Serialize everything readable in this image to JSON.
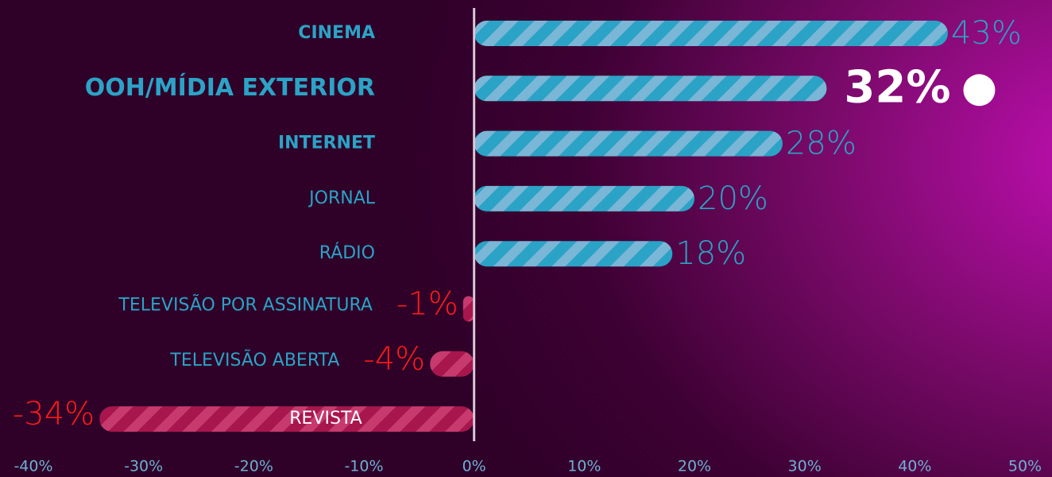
{
  "chart_data": {
    "type": "barh",
    "categories": [
      "CINEMA",
      "OOH/MÍDIA EXTERIOR",
      "INTERNET",
      "JORNAL",
      "RÁDIO",
      "TELEVISÃO POR ASSINATURA",
      "TELEVISÃO ABERTA",
      "REVISTA"
    ],
    "values": [
      43,
      32,
      28,
      20,
      18,
      -1,
      -4,
      -34
    ],
    "value_labels": [
      "43%",
      "32%",
      "28%",
      "20%",
      "18%",
      "-1%",
      "-4%",
      "-34%"
    ],
    "color": "#2ba3c6",
    "negative_color": "#a8164e",
    "xlim": [
      -40,
      50
    ],
    "xticks": [
      {
        "value": -40,
        "label": "-40%"
      },
      {
        "value": -30,
        "label": "-30%"
      },
      {
        "value": -20,
        "label": "-20%"
      },
      {
        "value": -10,
        "label": "-10%"
      },
      {
        "value": 0,
        "label": "0%"
      },
      {
        "value": 10,
        "label": "10%"
      },
      {
        "value": 20,
        "label": "20%"
      },
      {
        "value": 30,
        "label": "30%"
      },
      {
        "value": 40,
        "label": "40%"
      },
      {
        "value": 50,
        "label": "50%"
      }
    ]
  }
}
